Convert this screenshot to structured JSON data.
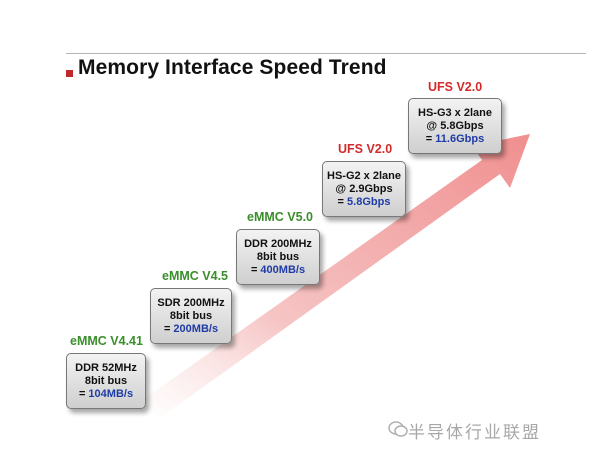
{
  "title": "Memory Interface Speed Trend",
  "steps": [
    {
      "label": "eMMC V4.41",
      "label_color": "green",
      "line1": "DDR 52MHz",
      "line2": "8bit bus",
      "speed_prefix": "= ",
      "speed": "104MB/s"
    },
    {
      "label": "eMMC V4.5",
      "label_color": "green",
      "line1": "SDR 200MHz",
      "line2": "8bit bus",
      "speed_prefix": "= ",
      "speed": "200MB/s"
    },
    {
      "label": "eMMC V5.0",
      "label_color": "green",
      "line1": "DDR 200MHz",
      "line2": "8bit bus",
      "speed_prefix": "= ",
      "speed": "400MB/s"
    },
    {
      "label": "UFS V2.0",
      "label_color": "red",
      "line1": "HS-G2 x 2lane",
      "line2": "@ 2.9Gbps",
      "speed_prefix": "= ",
      "speed": "5.8Gbps"
    },
    {
      "label": "UFS V2.0",
      "label_color": "red",
      "line1": "HS-G3 x 2lane",
      "line2": "@ 5.8Gbps",
      "speed_prefix": "= ",
      "speed": "11.6Gbps"
    }
  ],
  "watermark": "半导体行业联盟",
  "watermark_icon": "wechat-icon",
  "colors": {
    "green_label": "#3a8f2b",
    "red_label": "#d42a2a",
    "speed_blue": "#1f3ba8",
    "arrow": "#f2a3a3"
  }
}
